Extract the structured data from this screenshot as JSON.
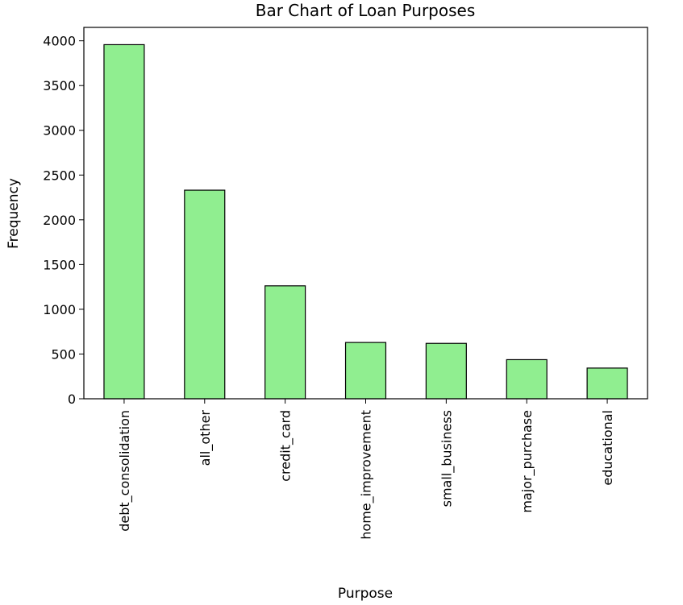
{
  "chart_data": {
    "type": "bar",
    "title": "Bar Chart of Loan Purposes",
    "xlabel": "Purpose",
    "ylabel": "Frequency",
    "categories": [
      "debt_consolidation",
      "all_other",
      "credit_card",
      "home_improvement",
      "small_business",
      "major_purchase",
      "educational"
    ],
    "values": [
      3957,
      2331,
      1262,
      629,
      619,
      437,
      343
    ],
    "ylim": [
      0,
      4150
    ],
    "yticks": [
      "0",
      "500",
      "1000",
      "1500",
      "2000",
      "2500",
      "3000",
      "3500",
      "4000"
    ],
    "bar_color": "#90ee90",
    "edge_color": "#000000",
    "grid": false,
    "legend": "none"
  }
}
